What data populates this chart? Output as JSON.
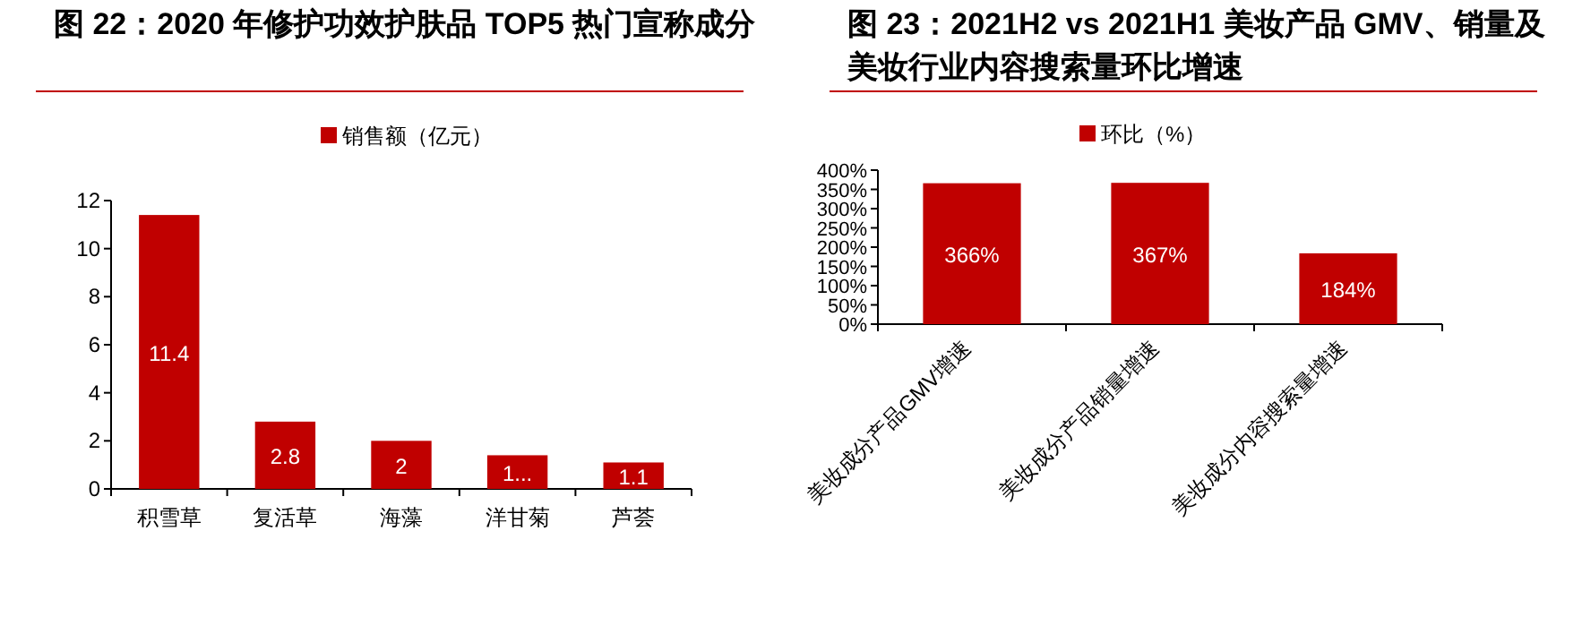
{
  "chart_data": [
    {
      "type": "bar",
      "title": "图 22：2020 年修护功效护肤品 TOP5 热门宣称成分",
      "categories": [
        "积雪草",
        "复活草",
        "海藻",
        "洋甘菊",
        "芦荟"
      ],
      "series": [
        {
          "name": "销售额（亿元）",
          "color": "#c00000",
          "values": [
            11.4,
            2.8,
            2,
            1.4,
            1.1
          ],
          "value_labels": [
            "11.4",
            "2.8",
            "2",
            "1...",
            "1.1"
          ]
        }
      ],
      "ylim": [
        0,
        12
      ],
      "yticks": [
        0,
        2,
        4,
        6,
        8,
        10,
        12
      ],
      "legend": "top",
      "grid": false
    },
    {
      "type": "bar",
      "title": "图 23：2021H2 vs 2021H1 美妆产品 GMV、销量及美妆行业内容搜索量环比增速",
      "categories": [
        "美妆成分产品GMV增速",
        "美妆成分产品销量增速",
        "美妆成分内容搜索量增速"
      ],
      "series": [
        {
          "name": "环比（%）",
          "color": "#c00000",
          "values": [
            366,
            367,
            184
          ],
          "value_labels": [
            "366%",
            "367%",
            "184%"
          ]
        }
      ],
      "ylim": [
        0,
        400
      ],
      "yticks": [
        {
          "value": 0,
          "label": "0%"
        },
        {
          "value": 50,
          "label": "50%"
        },
        {
          "value": 100,
          "label": "100%"
        },
        {
          "value": 150,
          "label": "150%"
        },
        {
          "value": 200,
          "label": "200%"
        },
        {
          "value": 250,
          "label": "250%"
        },
        {
          "value": 300,
          "label": "300%"
        },
        {
          "value": 350,
          "label": "350%"
        },
        {
          "value": 400,
          "label": "400%"
        }
      ],
      "legend": "top",
      "grid": false
    }
  ]
}
